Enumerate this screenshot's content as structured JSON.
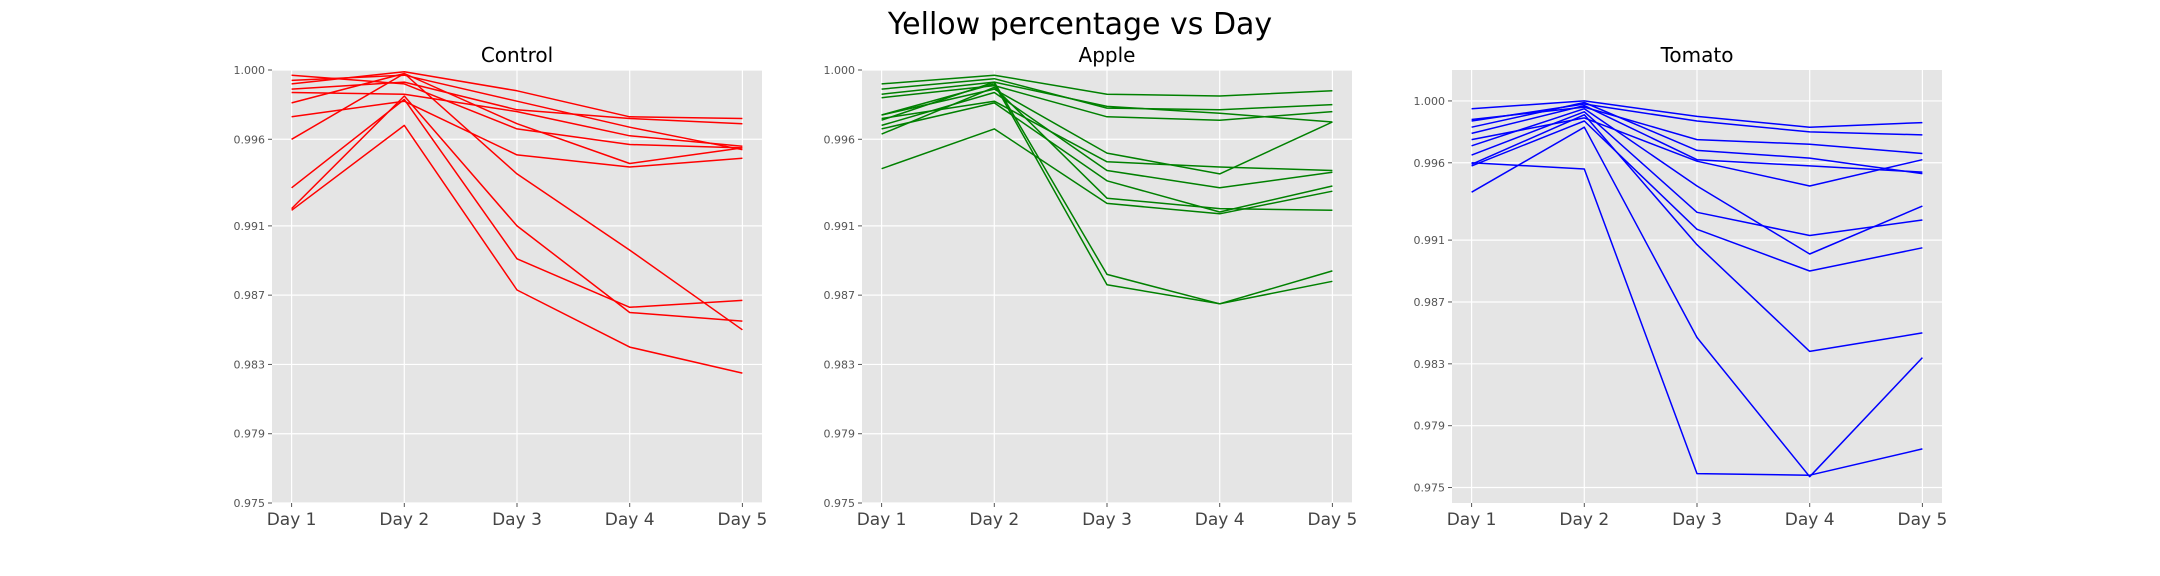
{
  "figure": {
    "title": "Yellow percentage vs Day"
  },
  "chart_data": [
    {
      "type": "line",
      "title": "Control",
      "color": "#ff0000",
      "x": [
        "Day 1",
        "Day 2",
        "Day 3",
        "Day 4",
        "Day 5"
      ],
      "ylim": [
        0.975,
        1.0
      ],
      "yticks": [
        "0.975",
        "0.979",
        "0.983",
        "0.987",
        "0.991",
        "0.996",
        "1.000"
      ],
      "grid": true,
      "series": [
        {
          "values": [
            0.9997,
            0.9992,
            0.9966,
            0.9957,
            0.9955
          ]
        },
        {
          "values": [
            0.9994,
            0.9997,
            0.9982,
            0.9967,
            0.9954
          ]
        },
        {
          "values": [
            0.9992,
            0.9999,
            0.9988,
            0.9973,
            0.9972
          ]
        },
        {
          "values": [
            0.9989,
            0.9993,
            0.9977,
            0.9972,
            0.9969
          ]
        },
        {
          "values": [
            0.9987,
            0.9986,
            0.9976,
            0.9962,
            0.9956
          ]
        },
        {
          "values": [
            0.9981,
            0.9998,
            0.9969,
            0.9946,
            0.9955
          ]
        },
        {
          "values": [
            0.9973,
            0.9982,
            0.9951,
            0.9944,
            0.9949
          ]
        },
        {
          "values": [
            0.996,
            0.9998,
            0.994,
            0.9896,
            0.985
          ]
        },
        {
          "values": [
            0.9932,
            0.9983,
            0.9891,
            0.9863,
            0.9867
          ]
        },
        {
          "values": [
            0.992,
            0.9985,
            0.991,
            0.986,
            0.9855
          ]
        },
        {
          "values": [
            0.9919,
            0.9968,
            0.9873,
            0.984,
            0.9825
          ]
        }
      ]
    },
    {
      "type": "line",
      "title": "Apple",
      "color": "#008000",
      "x": [
        "Day 1",
        "Day 2",
        "Day 3",
        "Day 4",
        "Day 5"
      ],
      "ylim": [
        0.975,
        1.0
      ],
      "yticks": [
        "0.975",
        "0.979",
        "0.983",
        "0.987",
        "0.991",
        "0.996",
        "1.000"
      ],
      "grid": true,
      "series": [
        {
          "values": [
            0.9992,
            0.9997,
            0.9986,
            0.9985,
            0.9988
          ]
        },
        {
          "values": [
            0.9989,
            0.9995,
            0.9978,
            0.9977,
            0.998
          ]
        },
        {
          "values": [
            0.9986,
            0.9993,
            0.9979,
            0.9975,
            0.997
          ]
        },
        {
          "values": [
            0.9984,
            0.9991,
            0.9973,
            0.9971,
            0.9976
          ]
        },
        {
          "values": [
            0.9974,
            0.9989,
            0.9952,
            0.994,
            0.997
          ]
        },
        {
          "values": [
            0.9972,
            0.9982,
            0.9947,
            0.9944,
            0.9942
          ]
        },
        {
          "values": [
            0.9968,
            0.9987,
            0.9942,
            0.9932,
            0.9941
          ]
        },
        {
          "values": [
            0.9966,
            0.9981,
            0.9936,
            0.9918,
            0.9933
          ]
        },
        {
          "values": [
            0.9963,
            0.999,
            0.9926,
            0.992,
            0.9919
          ]
        },
        {
          "values": [
            0.9943,
            0.9966,
            0.9923,
            0.9917,
            0.993
          ]
        },
        {
          "values": [
            0.9971,
            0.9993,
            0.9882,
            0.9865,
            0.9884
          ]
        },
        {
          "values": [
            0.9974,
            0.9992,
            0.9876,
            0.9865,
            0.9878
          ]
        }
      ]
    },
    {
      "type": "line",
      "title": "Tomato",
      "color": "#0000ff",
      "x": [
        "Day 1",
        "Day 2",
        "Day 3",
        "Day 4",
        "Day 5"
      ],
      "ylim": [
        0.974,
        1.002
      ],
      "yticks": [
        "0.975",
        "0.979",
        "0.983",
        "0.987",
        "0.991",
        "0.996",
        "1.000"
      ],
      "grid": true,
      "series": [
        {
          "values": [
            0.9995,
            1.0,
            0.999,
            0.9983,
            0.9986
          ]
        },
        {
          "values": [
            0.9987,
            0.9998,
            0.9987,
            0.998,
            0.9978
          ]
        },
        {
          "values": [
            0.9988,
            0.9996,
            0.9975,
            0.9972,
            0.9966
          ]
        },
        {
          "values": [
            0.9983,
            0.9999,
            0.9968,
            0.9963,
            0.9953
          ]
        },
        {
          "values": [
            0.9979,
            0.9997,
            0.9962,
            0.9958,
            0.9954
          ]
        },
        {
          "values": [
            0.9975,
            0.9989,
            0.9961,
            0.9945,
            0.9962
          ]
        },
        {
          "values": [
            0.9971,
            0.9995,
            0.9945,
            0.9901,
            0.9932
          ]
        },
        {
          "values": [
            0.9965,
            0.9993,
            0.9928,
            0.9913,
            0.9923
          ]
        },
        {
          "values": [
            0.9958,
            0.9987,
            0.9917,
            0.989,
            0.9905
          ]
        },
        {
          "values": [
            0.9959,
            0.9991,
            0.9907,
            0.9838,
            0.985
          ]
        },
        {
          "values": [
            0.9941,
            0.9983,
            0.9847,
            0.9757,
            0.9834
          ]
        },
        {
          "values": [
            0.996,
            0.9956,
            0.9759,
            0.9758,
            0.9775
          ]
        }
      ]
    }
  ]
}
